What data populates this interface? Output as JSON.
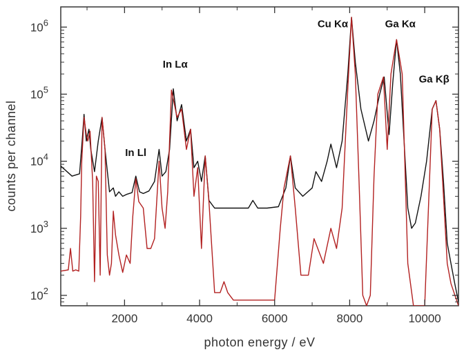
{
  "chart_data": {
    "type": "line",
    "title": "",
    "xlabel": "photon energy / eV",
    "ylabel": "counts per channel",
    "xlim": [
      300,
      10900
    ],
    "ylim": [
      70,
      2000000
    ],
    "y_scale": "log",
    "grid": false,
    "legend": "none",
    "x_ticks": [
      {
        "value": 2000,
        "label": "2000"
      },
      {
        "value": 4000,
        "label": "4000"
      },
      {
        "value": 6000,
        "label": "6000"
      },
      {
        "value": 8000,
        "label": "8000"
      },
      {
        "value": 10000,
        "label": "10000"
      }
    ],
    "y_ticks": [
      {
        "value": 100,
        "base": "10",
        "exp": "2"
      },
      {
        "value": 1000,
        "base": "10",
        "exp": "3"
      },
      {
        "value": 10000,
        "base": "10",
        "exp": "4"
      },
      {
        "value": 100000,
        "base": "10",
        "exp": "5"
      },
      {
        "value": 1000000,
        "base": "10",
        "exp": "6"
      }
    ],
    "annotations": [
      {
        "text": "In Lα",
        "x": 3350,
        "y": 250000
      },
      {
        "text": "In Ll",
        "x": 2300,
        "y": 12000
      },
      {
        "text": "Cu Kα",
        "x": 7550,
        "y": 1000000
      },
      {
        "text": "Ga Kα",
        "x": 9350,
        "y": 1000000
      },
      {
        "text": "Ga Kβ",
        "x": 10250,
        "y": 150000
      }
    ],
    "series": [
      {
        "color": "#111111",
        "x": [
          300,
          600,
          800,
          870,
          920,
          980,
          1050,
          1100,
          1200,
          1300,
          1400,
          1480,
          1600,
          1700,
          1760,
          1850,
          1950,
          2050,
          2200,
          2300,
          2400,
          2500,
          2650,
          2800,
          2920,
          3000,
          3100,
          3200,
          3300,
          3400,
          3520,
          3650,
          3760,
          3850,
          3950,
          4050,
          4150,
          4250,
          4400,
          4700,
          5000,
          5300,
          5420,
          5550,
          5800,
          6100,
          6300,
          6420,
          6550,
          6750,
          7000,
          7100,
          7250,
          7400,
          7500,
          7650,
          7800,
          7950,
          8050,
          8150,
          8300,
          8500,
          8650,
          8800,
          8920,
          9050,
          9150,
          9250,
          9350,
          9450,
          9550,
          9650,
          9750,
          9900,
          10050,
          10200,
          10300,
          10400,
          10500,
          10600,
          10700,
          10800,
          10900
        ],
        "y": [
          8500,
          6000,
          6500,
          20000,
          50000,
          20000,
          30000,
          15000,
          7000,
          20000,
          45000,
          15000,
          3500,
          4000,
          3000,
          3500,
          3000,
          3200,
          3400,
          6000,
          3500,
          3300,
          3600,
          5000,
          15000,
          6000,
          7000,
          15000,
          120000,
          40000,
          70000,
          20000,
          30000,
          8000,
          10000,
          5000,
          12000,
          2600,
          2000,
          2000,
          2000,
          2000,
          2600,
          2000,
          2000,
          2100,
          4000,
          12000,
          4000,
          3000,
          4000,
          7000,
          5000,
          10000,
          18000,
          8000,
          20000,
          200000,
          1400000,
          300000,
          60000,
          20000,
          40000,
          100000,
          180000,
          25000,
          150000,
          650000,
          200000,
          20000,
          2000,
          1000,
          1200,
          3000,
          10000,
          60000,
          80000,
          30000,
          5000,
          600,
          300,
          150,
          80
        ]
      },
      {
        "color": "#b22020",
        "x": [
          300,
          500,
          560,
          620,
          700,
          780,
          830,
          860,
          920,
          980,
          1020,
          1080,
          1150,
          1200,
          1250,
          1300,
          1350,
          1400,
          1480,
          1540,
          1600,
          1650,
          1700,
          1760,
          1850,
          1950,
          2050,
          2150,
          2220,
          2300,
          2380,
          2500,
          2600,
          2700,
          2800,
          2920,
          3000,
          3080,
          3150,
          3250,
          3330,
          3400,
          3520,
          3650,
          3760,
          3850,
          3950,
          4050,
          4150,
          4250,
          4400,
          4550,
          4650,
          4750,
          4900,
          5200,
          5600,
          6000,
          6150,
          6250,
          6420,
          6550,
          6700,
          6900,
          7050,
          7150,
          7300,
          7500,
          7650,
          7800,
          7950,
          8050,
          8150,
          8250,
          8350,
          8450,
          8550,
          8650,
          8750,
          8900,
          9000,
          9100,
          9250,
          9400,
          9550,
          9700,
          9900,
          10000,
          10100,
          10200,
          10300,
          10400,
          10500,
          10600,
          10700,
          10900
        ],
        "y": [
          230,
          240,
          500,
          230,
          240,
          230,
          1500,
          10000,
          45000,
          25000,
          20000,
          28000,
          5000,
          160,
          6000,
          5000,
          200,
          45000,
          15000,
          400,
          200,
          300,
          1800,
          800,
          400,
          220,
          400,
          300,
          1500,
          5500,
          2500,
          2000,
          500,
          500,
          700,
          10000,
          2000,
          1000,
          3500,
          115000,
          70000,
          45000,
          60000,
          15000,
          30000,
          3000,
          8000,
          500,
          12000,
          2500,
          110,
          110,
          160,
          110,
          85,
          85,
          85,
          85,
          1000,
          4000,
          12000,
          2000,
          200,
          200,
          700,
          500,
          300,
          1000,
          500,
          2000,
          120000,
          1400000,
          200000,
          5000,
          100,
          70,
          100,
          6000,
          100000,
          180000,
          15000,
          200000,
          650000,
          200000,
          300,
          70,
          70,
          70,
          2000,
          60000,
          80000,
          30000,
          3000,
          300,
          150,
          70
        ]
      }
    ]
  }
}
